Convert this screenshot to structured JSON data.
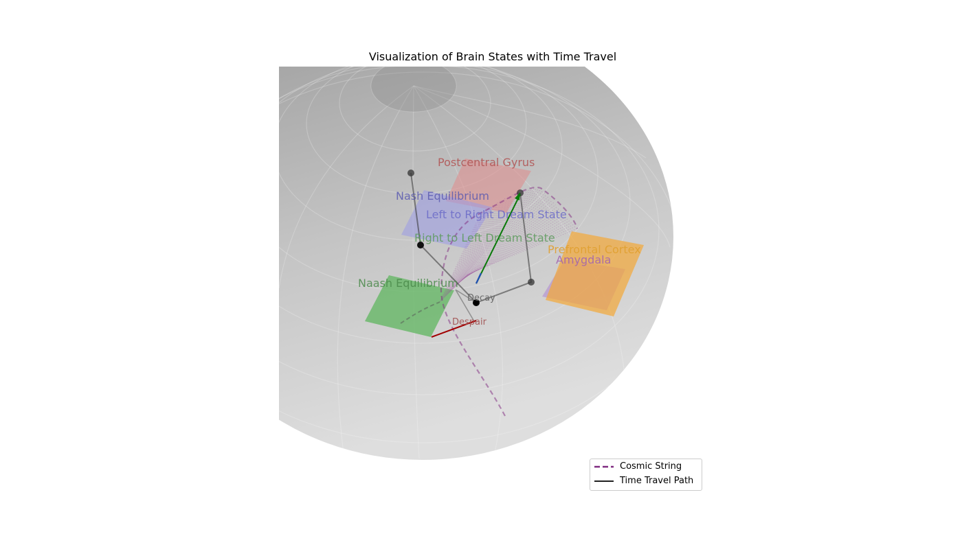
{
  "title": "Visualization of Brain States with Time Travel",
  "regions": [
    {
      "label": "Postcentral Gyrus",
      "color": "#e08a8a"
    },
    {
      "label": "Nash Equilibrium",
      "color": "#8a8ae0"
    },
    {
      "label": "Left to Right Dream State",
      "color": "#7a7ad8"
    },
    {
      "label": "Right to Left Dream State",
      "color": "#6aa86a"
    },
    {
      "label": "Prefrontal Cortex",
      "color": "#f2a93b"
    },
    {
      "label": "Amygdala",
      "color": "#c77ad8"
    },
    {
      "label": "Naash Equilibrium",
      "color": "#5fb55f"
    }
  ],
  "states": {
    "decay": "Decay",
    "despair": "Despair"
  },
  "legend": {
    "cosmic_string": "Cosmic String",
    "time_travel": "Time Travel Path"
  },
  "colors": {
    "cosmic_string": "#7f2a80",
    "time_travel": "#000000",
    "arrow_green": "#0a7a0a",
    "arrow_red": "#a00000",
    "arrow_blue": "#1f4fb4",
    "sphere": "#bdbdbd"
  }
}
